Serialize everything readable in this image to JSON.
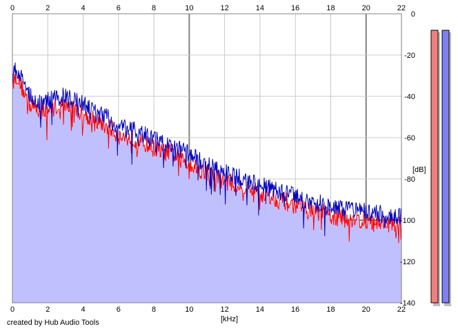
{
  "footer_text": "created by Hub Audio Tools",
  "chart_data": {
    "type": "area",
    "title": "",
    "xlabel": "[kHz]",
    "ylabel": "[dB]",
    "x_ticks": [
      "0",
      "2",
      "4",
      "6",
      "8",
      "10",
      "12",
      "14",
      "16",
      "18",
      "20",
      "22"
    ],
    "y_ticks": [
      "0",
      "-20",
      "-40",
      "-60",
      "-80",
      "-100",
      "-120",
      "-140"
    ],
    "xlim": [
      0,
      22
    ],
    "ylim": [
      -140,
      0
    ],
    "grid": true,
    "colors": {
      "fill": "#c0c0ff",
      "series_a": "#ff0000",
      "series_b": "#0000c0",
      "grid_minor": "#c8c8c8",
      "grid_major": "#808080",
      "meter_left": "#f08080",
      "meter_right": "#8080f0"
    },
    "series": [
      {
        "color": "red",
        "x": [
          0,
          0.25,
          0.5,
          1,
          1.5,
          2,
          2.5,
          3,
          3.5,
          4,
          4.5,
          5,
          5.5,
          6,
          6.5,
          7,
          7.5,
          8,
          8.5,
          9,
          9.5,
          10,
          10.5,
          11,
          11.5,
          12,
          12.5,
          13,
          13.5,
          14,
          14.5,
          15,
          15.5,
          16,
          16.5,
          17,
          17.5,
          18,
          18.5,
          19,
          19.5,
          20,
          20.5,
          21,
          21.5,
          22
        ],
        "values": [
          -33,
          -30,
          -35,
          -44,
          -47,
          -46,
          -45,
          -44,
          -46,
          -48,
          -51,
          -53,
          -55,
          -59,
          -60,
          -61,
          -63,
          -65,
          -67,
          -67,
          -70,
          -72,
          -75,
          -77,
          -79,
          -81,
          -82,
          -84,
          -85,
          -87,
          -88,
          -90,
          -91,
          -93,
          -94,
          -96,
          -96,
          -98,
          -99,
          -99,
          -100,
          -100,
          -101,
          -101,
          -102,
          -102
        ]
      },
      {
        "color": "blue",
        "x": [
          0,
          0.25,
          0.5,
          1,
          1.5,
          2,
          2.5,
          3,
          3.5,
          4,
          4.5,
          5,
          5.5,
          6,
          6.5,
          7,
          7.5,
          8,
          8.5,
          9,
          9.5,
          10,
          10.5,
          11,
          11.5,
          12,
          12.5,
          13,
          13.5,
          14,
          14.5,
          15,
          15.5,
          16,
          16.5,
          17,
          17.5,
          18,
          18.5,
          19,
          19.5,
          20,
          20.5,
          21,
          21.5,
          22
        ],
        "values": [
          -29,
          -27,
          -31,
          -39,
          -43,
          -42,
          -41,
          -40,
          -42,
          -44,
          -47,
          -49,
          -51,
          -55,
          -56,
          -57,
          -59,
          -61,
          -63,
          -63,
          -66,
          -68,
          -71,
          -73,
          -75,
          -77,
          -78,
          -80,
          -81,
          -83,
          -84,
          -86,
          -87,
          -89,
          -90,
          -92,
          -92,
          -94,
          -95,
          -95,
          -96,
          -96,
          -97,
          -97,
          -98,
          -98
        ]
      }
    ],
    "meters": [
      {
        "color": "red",
        "value": -8
      },
      {
        "color": "blue",
        "value": -8
      }
    ]
  }
}
